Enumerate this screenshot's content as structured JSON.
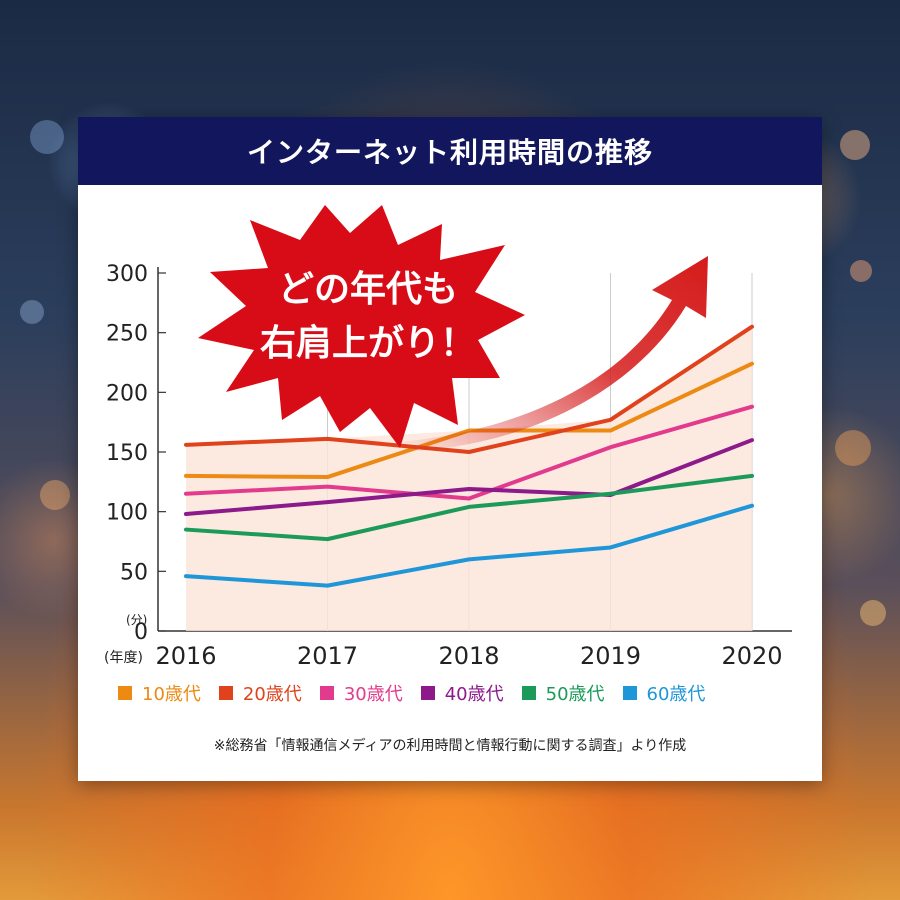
{
  "header": {
    "title": "インターネット利用時間の推移"
  },
  "callout": {
    "line1": "どの年代も",
    "line2": "右肩上がり！"
  },
  "axis_unit_label": "(分)",
  "x_axis_prefix": "(年度)",
  "source_note": "※総務省「情報通信メディアの利用時間と情報行動に関する調査」より作成",
  "colors": {
    "header_bg": "#12165c",
    "burst": "#d80c17",
    "arrow": "#d51b1b",
    "area_fill": "#fbe4d8"
  },
  "chart_data": {
    "type": "line",
    "x": [
      "2016",
      "2017",
      "2018",
      "2019",
      "2020"
    ],
    "ylim": [
      0,
      300
    ],
    "yticks": [
      0,
      50,
      100,
      150,
      200,
      250,
      300
    ],
    "series": [
      {
        "name": "10歳代",
        "color": "#ec8a13",
        "values": [
          130,
          129,
          168,
          168,
          224
        ]
      },
      {
        "name": "20歳代",
        "color": "#e0421c",
        "values": [
          156,
          161,
          150,
          177,
          255
        ]
      },
      {
        "name": "30歳代",
        "color": "#e23a8c",
        "values": [
          115,
          121,
          111,
          154,
          188
        ]
      },
      {
        "name": "40歳代",
        "color": "#8c1a8a",
        "values": [
          98,
          108,
          119,
          114,
          160
        ]
      },
      {
        "name": "50歳代",
        "color": "#1c9a5a",
        "values": [
          85,
          77,
          104,
          115,
          130
        ]
      },
      {
        "name": "60歳代",
        "color": "#1f96d8",
        "values": [
          46,
          38,
          60,
          70,
          105
        ]
      }
    ]
  }
}
